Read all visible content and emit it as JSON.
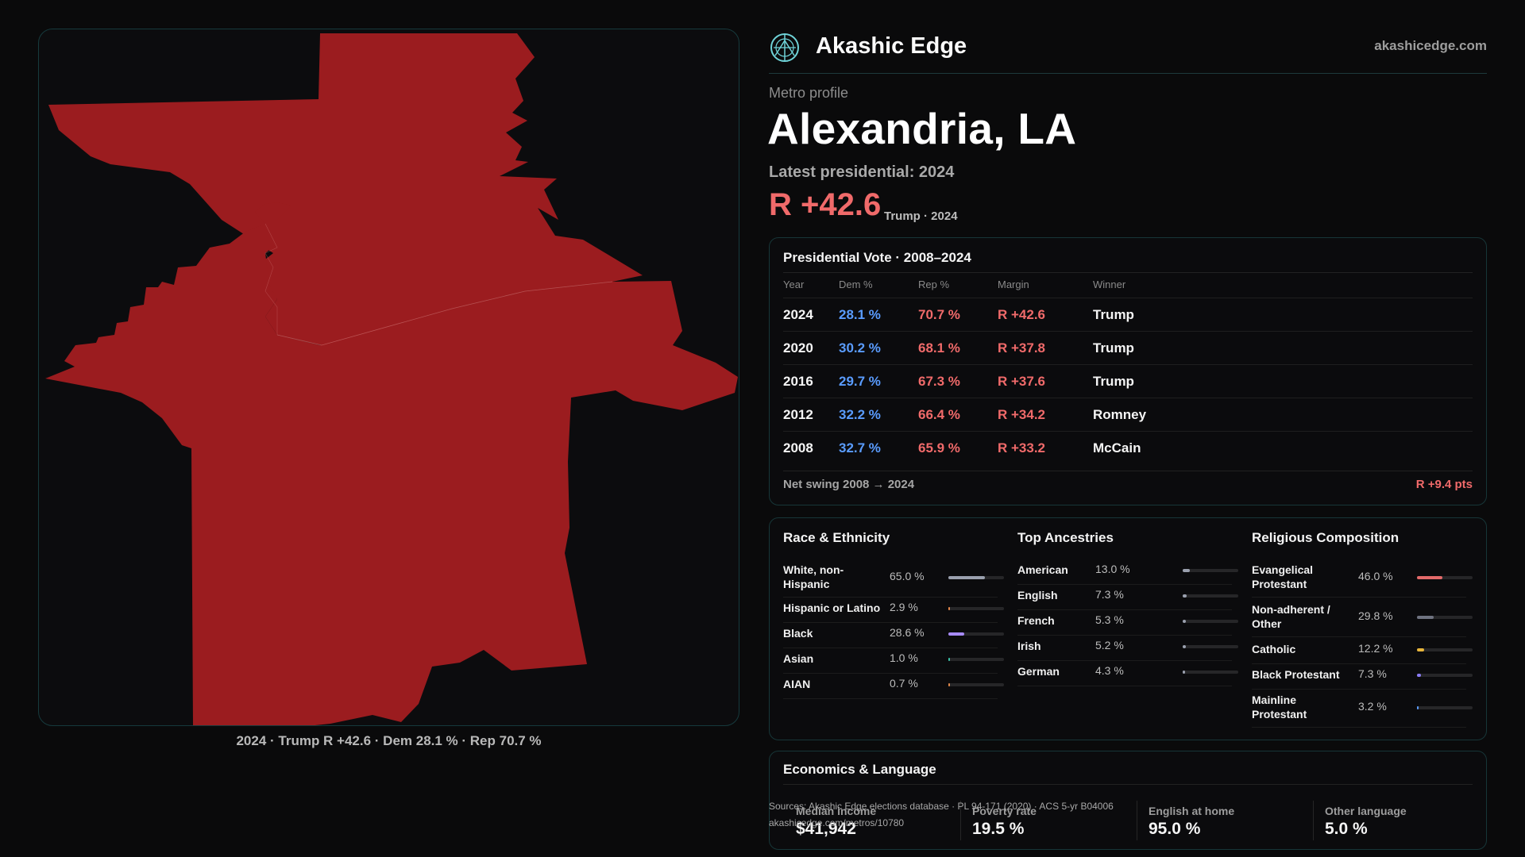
{
  "brand": {
    "name": "Akashic Edge",
    "url": "akashicedge.com",
    "logo_icon": "compass-rose-icon"
  },
  "header": {
    "kicker": "Metro profile",
    "title": "Alexandria, LA",
    "latest_label": "Latest presidential: 2024",
    "margin": "R +42.6",
    "margin_sub": "Trump · 2024"
  },
  "map": {
    "caption": "2024 · Trump R +42.6 · Dem 28.1 % · Rep 70.7 %",
    "fill_color": "#9b1c1f",
    "border_color": "#c96a6a"
  },
  "presidential": {
    "title": "Presidential Vote · 2008–2024",
    "headers": [
      "Year",
      "Dem %",
      "Rep %",
      "Margin",
      "Winner"
    ],
    "rows": [
      {
        "year": "2024",
        "dem": "28.1 %",
        "rep": "70.7 %",
        "margin": "R +42.6",
        "winner": "Trump"
      },
      {
        "year": "2020",
        "dem": "30.2 %",
        "rep": "68.1 %",
        "margin": "R +37.8",
        "winner": "Trump"
      },
      {
        "year": "2016",
        "dem": "29.7 %",
        "rep": "67.3 %",
        "margin": "R +37.6",
        "winner": "Trump"
      },
      {
        "year": "2012",
        "dem": "32.2 %",
        "rep": "66.4 %",
        "margin": "R +34.2",
        "winner": "Romney"
      },
      {
        "year": "2008",
        "dem": "32.7 %",
        "rep": "65.9 %",
        "margin": "R +33.2",
        "winner": "McCain"
      }
    ],
    "swing_label": "Net swing 2008 → 2024",
    "swing_value": "R +9.4 pts",
    "colors": {
      "dem": "#5a9cff",
      "rep": "#f06a6a"
    }
  },
  "race": {
    "title": "Race & Ethnicity",
    "items": [
      {
        "label": "White, non-Hispanic",
        "value": "65.0 %",
        "pct": 65.0,
        "color": "#9aa0ae"
      },
      {
        "label": "Hispanic or Latino",
        "value": "2.9 %",
        "pct": 2.9,
        "color": "#e8894a"
      },
      {
        "label": "Black",
        "value": "28.6 %",
        "pct": 28.6,
        "color": "#a78bfa"
      },
      {
        "label": "Asian",
        "value": "1.0 %",
        "pct": 1.0,
        "color": "#39c2a8"
      },
      {
        "label": "AIAN",
        "value": "0.7 %",
        "pct": 0.7,
        "color": "#e0884a"
      }
    ]
  },
  "ancestry": {
    "title": "Top Ancestries",
    "items": [
      {
        "label": "American",
        "value": "13.0 %",
        "pct": 13.0,
        "color": "#9aa0ae"
      },
      {
        "label": "English",
        "value": "7.3 %",
        "pct": 7.3,
        "color": "#9aa0ae"
      },
      {
        "label": "French",
        "value": "5.3 %",
        "pct": 5.3,
        "color": "#9aa0ae"
      },
      {
        "label": "Irish",
        "value": "5.2 %",
        "pct": 5.2,
        "color": "#9aa0ae"
      },
      {
        "label": "German",
        "value": "4.3 %",
        "pct": 4.3,
        "color": "#9aa0ae"
      }
    ]
  },
  "religion": {
    "title": "Religious Composition",
    "items": [
      {
        "label": "Evangelical Protestant",
        "value": "46.0 %",
        "pct": 46.0,
        "color": "#e36a6a"
      },
      {
        "label": "Non-adherent / Other",
        "value": "29.8 %",
        "pct": 29.8,
        "color": "#6f7380"
      },
      {
        "label": "Catholic",
        "value": "12.2 %",
        "pct": 12.2,
        "color": "#e7b53b"
      },
      {
        "label": "Black Protestant",
        "value": "7.3 %",
        "pct": 7.3,
        "color": "#8b7cf6"
      },
      {
        "label": "Mainline Protestant",
        "value": "3.2 %",
        "pct": 3.2,
        "color": "#5a9cff"
      }
    ]
  },
  "economics": {
    "title": "Economics & Language",
    "stats": [
      {
        "label": "Median income",
        "value": "$41,942"
      },
      {
        "label": "Poverty rate",
        "value": "19.5 %"
      },
      {
        "label": "English at home",
        "value": "95.0 %"
      },
      {
        "label": "Other language",
        "value": "5.0 %"
      }
    ]
  },
  "sources": {
    "line1": "Sources: Akashic Edge elections database · PL 94-171 (2020) · ACS 5-yr B04006",
    "line2": "akashicedge.com/metros/10780"
  }
}
